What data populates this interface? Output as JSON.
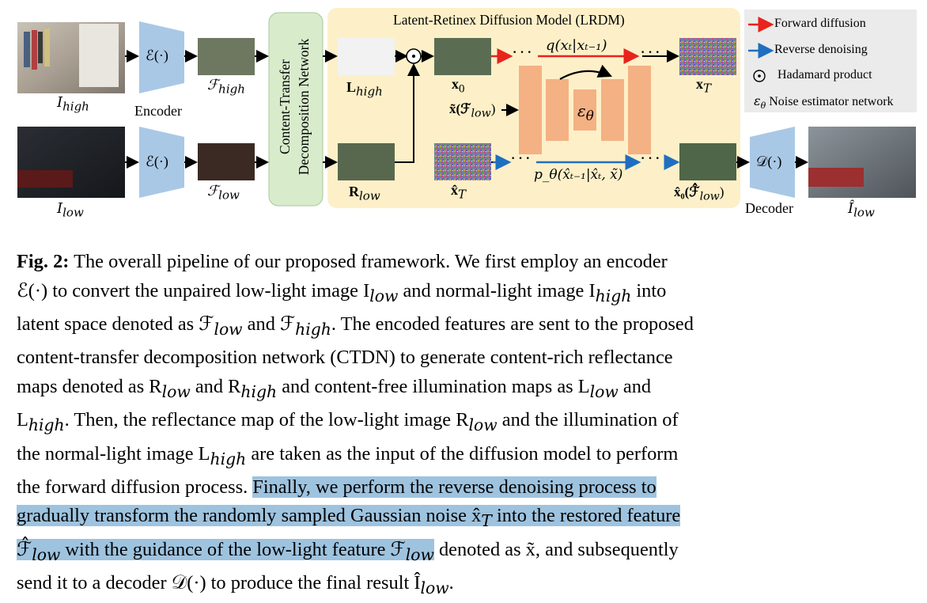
{
  "figure": {
    "lrdm_title": "Latent-Retinex Diffusion Model (LRDM)",
    "ctdn_label_line1": "Content-Transfer",
    "ctdn_label_line2": "Decomposition Network",
    "encoder_label": "Encoder",
    "decoder_label": "Decoder",
    "encoder_symbol": "ℰ(·)",
    "decoder_symbol": "𝒟(·)",
    "i_high": "I",
    "i_high_sub": "high",
    "i_low": "I",
    "i_low_sub": "low",
    "i_low_hat": "Î",
    "i_low_hat_sub": "low",
    "f_high": "ℱ",
    "f_high_sub": "high",
    "f_low": "ℱ",
    "f_low_sub": "low",
    "l_high": "L",
    "l_high_sub": "high",
    "r_low": "R",
    "r_low_sub": "low",
    "x0": "x",
    "x0_sub": "0",
    "xT": "x",
    "xT_sub": "T",
    "xhatT": "x̂",
    "xhatT_sub": "T",
    "xhat0": "x̂₀(ℱ̂",
    "xhat0_sub": "low",
    "xhat0_close": ")",
    "condition": "x̃(ℱ",
    "condition_sub": "low",
    "condition_close": ")",
    "forward_eq": "q(xₜ|xₜ₋₁)",
    "reverse_eq": "p_θ(x̂ₜ₋₁|x̂ₜ, x̃)",
    "epsilon": "ε",
    "epsilon_sub": "θ",
    "hadamard": "⊙",
    "ellipsis": "· · ·"
  },
  "legend": {
    "forward": "Forward diffusion",
    "reverse": "Reverse denoising",
    "hadamard": "Hadamard product",
    "noise": "Noise estimator network",
    "noise_symbol": "ε",
    "noise_symbol_sub": "θ",
    "forward_color": "#e8231c",
    "reverse_color": "#1f6fc0"
  },
  "caption": {
    "lines": [
      [
        "The overall pipeline of our proposed framework. We first employ an encoder"
      ],
      [
        "ℰ(·) to convert the unpaired low-light image I",
        "low",
        " and normal-light image I",
        "high",
        " into"
      ],
      [
        "latent space denoted as ℱ",
        "low",
        " and ℱ",
        "high",
        ". The encoded features are sent to the proposed"
      ],
      [
        "content-transfer decomposition network (CTDN) to generate content-rich reflectance"
      ],
      [
        "maps denoted as R",
        "low",
        " and R",
        "high",
        " and content-free illumination maps as L",
        "low",
        " and"
      ],
      [
        "L",
        "high",
        ". Then, the reflectance map of the low-light image R",
        "low",
        " and the illumination of"
      ],
      [
        "the normal-light image L",
        "high",
        " are taken as the input of the diffusion model to perform"
      ],
      [
        "the forward diffusion process. ",
        "Finally, we perform the reverse denoising process to"
      ],
      [
        "gradually transform the randomly sampled Gaussian noise x̂",
        "T",
        " into the restored feature"
      ],
      [
        "ℱ̂",
        "low",
        " with the guidance of the low-light feature ℱ",
        "low",
        " denoted as x̃, and subsequently"
      ],
      [
        "send it to a decoder 𝒟(·) to produce the final result Î",
        "low",
        "."
      ]
    ],
    "fig_label": "Fig. 2:",
    "highlight_color": "#9ec3df"
  }
}
